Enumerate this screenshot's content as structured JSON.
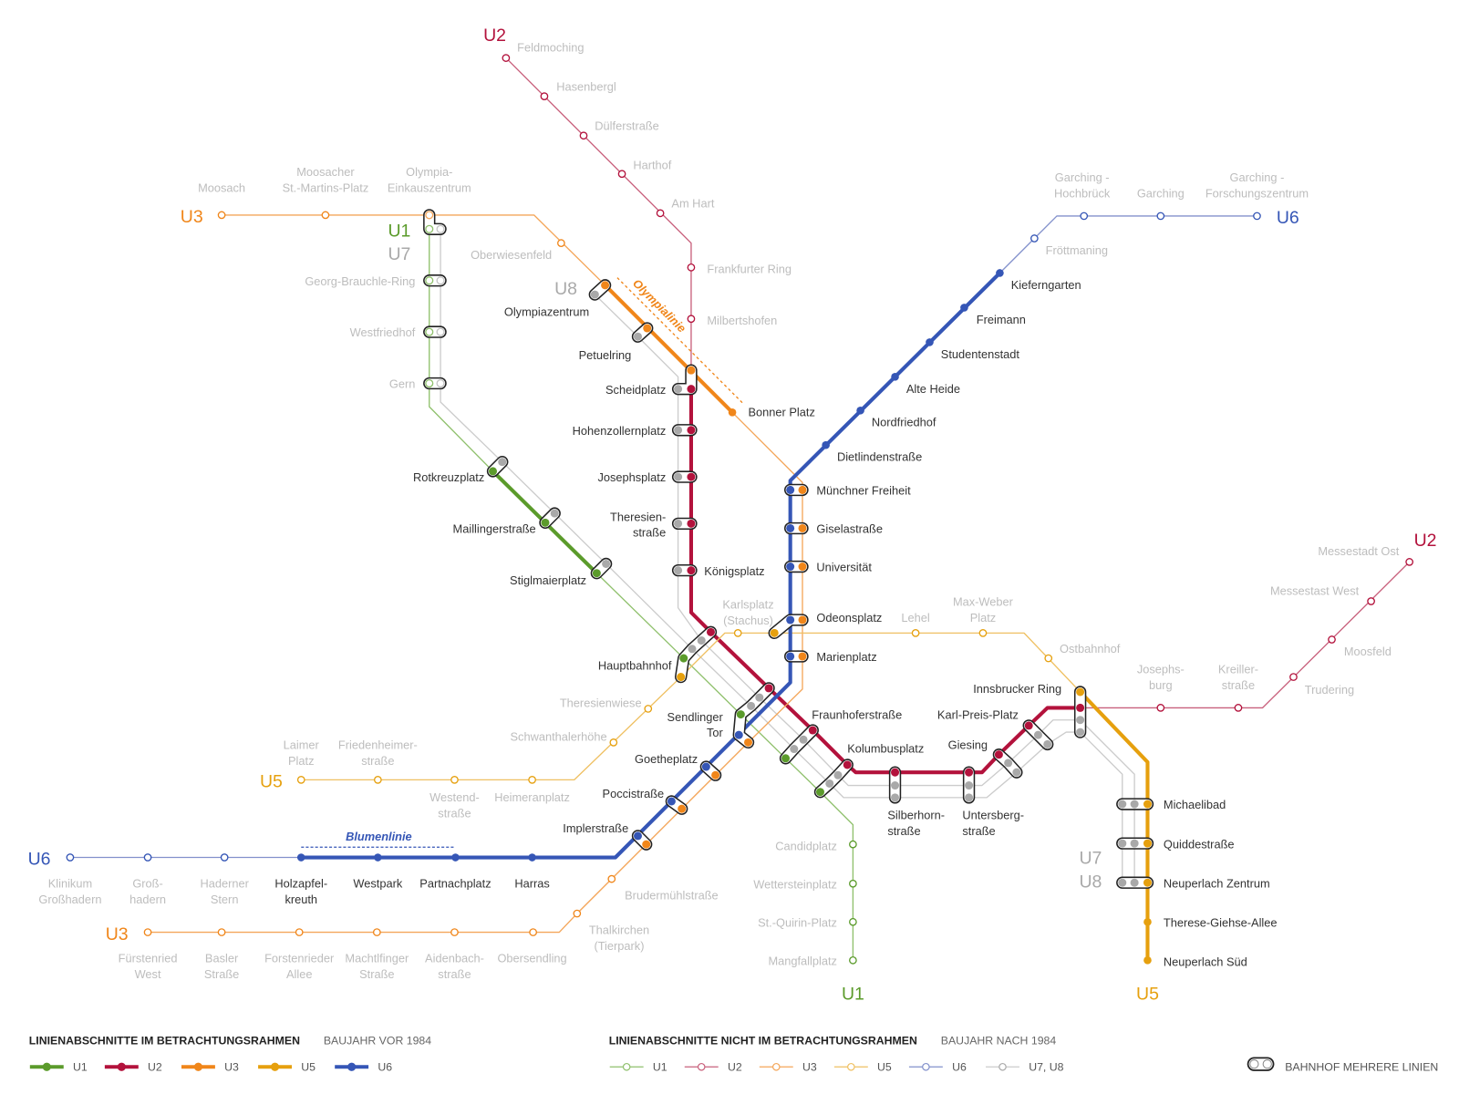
{
  "colors": {
    "U1": {
      "active": "#5b9b2b",
      "inactive": "#8fc06c"
    },
    "U2": {
      "active": "#b3123c",
      "inactive": "#c8607c"
    },
    "U3": {
      "active": "#f0861a",
      "inactive": "#f4a65a"
    },
    "U5": {
      "active": "#e6a00e",
      "inactive": "#efc062"
    },
    "U6": {
      "active": "#3556b6",
      "inactive": "#8391cc"
    },
    "U7U8": {
      "line": "#cccccc",
      "station": "#a9a9a9"
    }
  },
  "badges": [
    {
      "text": "U2",
      "line": "U2"
    },
    {
      "text": "U3",
      "line": "U3"
    },
    {
      "text": "U1",
      "line": "U1"
    },
    {
      "text": "U7",
      "line": "U7U8"
    },
    {
      "text": "U8",
      "line": "U7U8"
    },
    {
      "text": "U6",
      "line": "U6"
    },
    {
      "text": "U2",
      "line": "U2"
    },
    {
      "text": "U5",
      "line": "U5"
    },
    {
      "text": "U6",
      "line": "U6"
    },
    {
      "text": "U3",
      "line": "U3"
    },
    {
      "text": "U1",
      "line": "U1"
    },
    {
      "text": "U5",
      "line": "U5"
    },
    {
      "text": "U7",
      "line": "U7U8"
    },
    {
      "text": "U8",
      "line": "U7U8"
    }
  ],
  "annotations": {
    "olympialinie": "Olympialinie",
    "blumenlinie": "Blumenlinie"
  },
  "labels": [
    {
      "lines": [
        "Feldmoching"
      ],
      "active": false
    },
    {
      "lines": [
        "Hasenbergl"
      ],
      "active": false
    },
    {
      "lines": [
        "Dülferstraße"
      ],
      "active": false
    },
    {
      "lines": [
        "Harthof"
      ],
      "active": false
    },
    {
      "lines": [
        "Am Hart"
      ],
      "active": false
    },
    {
      "lines": [
        "Frankfurter Ring"
      ],
      "active": false
    },
    {
      "lines": [
        "Milbertshofen"
      ],
      "active": false
    },
    {
      "lines": [
        "Moosach"
      ],
      "active": false
    },
    {
      "lines": [
        "Moosacher",
        "St.-Martins-Platz"
      ],
      "active": false
    },
    {
      "lines": [
        "Olympia-",
        "Einkauszentrum"
      ],
      "active": false
    },
    {
      "lines": [
        "Oberwiesenfeld"
      ],
      "active": false
    },
    {
      "lines": [
        "Georg-Brauchle-Ring"
      ],
      "active": false
    },
    {
      "lines": [
        "Westfriedhof"
      ],
      "active": false
    },
    {
      "lines": [
        "Gern"
      ],
      "active": false
    },
    {
      "lines": [
        "Garching -",
        "Hochbrück"
      ],
      "active": false
    },
    {
      "lines": [
        "Garching"
      ],
      "active": false
    },
    {
      "lines": [
        "Garching -",
        "Forschungszentrum"
      ],
      "active": false
    },
    {
      "lines": [
        "Fröttmaning"
      ],
      "active": false
    },
    {
      "lines": [
        "Karlsplatz",
        "(Stachus)"
      ],
      "active": false
    },
    {
      "lines": [
        "Lehel"
      ],
      "active": false
    },
    {
      "lines": [
        "Max-Weber",
        "Platz"
      ],
      "active": false
    },
    {
      "lines": [
        "Ostbahnhof"
      ],
      "active": false
    },
    {
      "lines": [
        "Josephs-",
        "burg"
      ],
      "active": false
    },
    {
      "lines": [
        "Kreiller-",
        "straße"
      ],
      "active": false
    },
    {
      "lines": [
        "Messestadt Ost"
      ],
      "active": false
    },
    {
      "lines": [
        "Messestast West"
      ],
      "active": false
    },
    {
      "lines": [
        "Moosfeld"
      ],
      "active": false
    },
    {
      "lines": [
        "Trudering"
      ],
      "active": false
    },
    {
      "lines": [
        "Theresienwiese"
      ],
      "active": false
    },
    {
      "lines": [
        "Schwanthalerhöhe"
      ],
      "active": false
    },
    {
      "lines": [
        "Laimer",
        "Platz"
      ],
      "active": false
    },
    {
      "lines": [
        "Friedenheimer-",
        "straße"
      ],
      "active": false
    },
    {
      "lines": [
        "Westend-",
        "straße"
      ],
      "active": false
    },
    {
      "lines": [
        "Heimeranplatz"
      ],
      "active": false
    },
    {
      "lines": [
        "Candidplatz"
      ],
      "active": false
    },
    {
      "lines": [
        "Wettersteinplatz"
      ],
      "active": false
    },
    {
      "lines": [
        "St.-Quirin-Platz"
      ],
      "active": false
    },
    {
      "lines": [
        "Mangfallplatz"
      ],
      "active": false
    },
    {
      "lines": [
        "Brudermühlstraße"
      ],
      "active": false
    },
    {
      "lines": [
        "Thalkirchen",
        "(Tierpark)"
      ],
      "active": false
    },
    {
      "lines": [
        "Klinikum",
        "Großhadern"
      ],
      "active": false
    },
    {
      "lines": [
        "Groß-",
        "hadern"
      ],
      "active": false
    },
    {
      "lines": [
        "Haderner",
        "Stern"
      ],
      "active": false
    },
    {
      "lines": [
        "Fürstenried",
        "West"
      ],
      "active": false
    },
    {
      "lines": [
        "Basler",
        "Straße"
      ],
      "active": false
    },
    {
      "lines": [
        "Forstenrieder",
        "Allee"
      ],
      "active": false
    },
    {
      "lines": [
        "Machtlfinger",
        "Straße"
      ],
      "active": false
    },
    {
      "lines": [
        "Aidenbach-",
        "straße"
      ],
      "active": false
    },
    {
      "lines": [
        "Obersendling"
      ],
      "active": false
    },
    {
      "lines": [
        "Olympiazentrum"
      ],
      "active": true
    },
    {
      "lines": [
        "Petuelring"
      ],
      "active": true
    },
    {
      "lines": [
        "Scheidplatz"
      ],
      "active": true
    },
    {
      "lines": [
        "Hohenzollernplatz"
      ],
      "active": true
    },
    {
      "lines": [
        "Josephsplatz"
      ],
      "active": true
    },
    {
      "lines": [
        "Theresien-",
        "straße"
      ],
      "active": true
    },
    {
      "lines": [
        "Königsplatz"
      ],
      "active": true
    },
    {
      "lines": [
        "Bonner Platz"
      ],
      "active": true
    },
    {
      "lines": [
        "Kieferngarten"
      ],
      "active": true
    },
    {
      "lines": [
        "Freimann"
      ],
      "active": true
    },
    {
      "lines": [
        "Studentenstadt"
      ],
      "active": true
    },
    {
      "lines": [
        "Alte Heide"
      ],
      "active": true
    },
    {
      "lines": [
        "Nordfriedhof"
      ],
      "active": true
    },
    {
      "lines": [
        "Dietlindenstraße"
      ],
      "active": true
    },
    {
      "lines": [
        "Münchner Freiheit"
      ],
      "active": true
    },
    {
      "lines": [
        "Giselastraße"
      ],
      "active": true
    },
    {
      "lines": [
        "Universität"
      ],
      "active": true
    },
    {
      "lines": [
        "Odeonsplatz"
      ],
      "active": true
    },
    {
      "lines": [
        "Marienplatz"
      ],
      "active": true
    },
    {
      "lines": [
        "Rotkreuzplatz"
      ],
      "active": true
    },
    {
      "lines": [
        "Maillingerstraße"
      ],
      "active": true
    },
    {
      "lines": [
        "Stiglmaierplatz"
      ],
      "active": true
    },
    {
      "lines": [
        "Hauptbahnhof"
      ],
      "active": true
    },
    {
      "lines": [
        "Sendlinger",
        "Tor"
      ],
      "active": true
    },
    {
      "lines": [
        "Fraunhoferstraße"
      ],
      "active": true
    },
    {
      "lines": [
        "Goetheplatz"
      ],
      "active": true
    },
    {
      "lines": [
        "Kolumbusplatz"
      ],
      "active": true
    },
    {
      "lines": [
        "Poccistraße"
      ],
      "active": true
    },
    {
      "lines": [
        "Implerstraße"
      ],
      "active": true
    },
    {
      "lines": [
        "Silberhorn-",
        "straße"
      ],
      "active": true
    },
    {
      "lines": [
        "Untersberg-",
        "straße"
      ],
      "active": true
    },
    {
      "lines": [
        "Giesing"
      ],
      "active": true
    },
    {
      "lines": [
        "Karl-Preis-Platz"
      ],
      "active": true
    },
    {
      "lines": [
        "Innsbrucker Ring"
      ],
      "active": true
    },
    {
      "lines": [
        "Michaelibad"
      ],
      "active": true
    },
    {
      "lines": [
        "Quiddestraße"
      ],
      "active": true
    },
    {
      "lines": [
        "Neuperlach Zentrum"
      ],
      "active": true
    },
    {
      "lines": [
        "Therese-Giehse-Allee"
      ],
      "active": true
    },
    {
      "lines": [
        "Neuperlach Süd"
      ],
      "active": true
    },
    {
      "lines": [
        "Holzapfel-",
        "kreuth"
      ],
      "active": true
    },
    {
      "lines": [
        "Westpark"
      ],
      "active": true
    },
    {
      "lines": [
        "Partnachplatz"
      ],
      "active": true
    },
    {
      "lines": [
        "Harras"
      ],
      "active": true
    }
  ],
  "legend": {
    "in_scope": {
      "title": "LINIENABSCHNITTE IM BETRACHTUNGSRAHMEN",
      "subtitle": "BAUJAHR VOR 1984",
      "items": [
        {
          "label": "U1",
          "line": "U1"
        },
        {
          "label": "U2",
          "line": "U2"
        },
        {
          "label": "U3",
          "line": "U3"
        },
        {
          "label": "U5",
          "line": "U5"
        },
        {
          "label": "U6",
          "line": "U6"
        }
      ]
    },
    "out_of_scope": {
      "title": "LINIENABSCHNITTE NICHT IM BETRACHTUNGSRAHMEN",
      "subtitle": "BAUJAHR NACH 1984",
      "items": [
        {
          "label": "U1",
          "line": "U1"
        },
        {
          "label": "U2",
          "line": "U2"
        },
        {
          "label": "U3",
          "line": "U3"
        },
        {
          "label": "U5",
          "line": "U5"
        },
        {
          "label": "U6",
          "line": "U6"
        },
        {
          "label": "U7, U8",
          "line": "U7U8"
        }
      ]
    },
    "interchange": {
      "label": "BAHNHOF MEHRERE LINIEN",
      "icon": "double-ring-icon"
    }
  }
}
